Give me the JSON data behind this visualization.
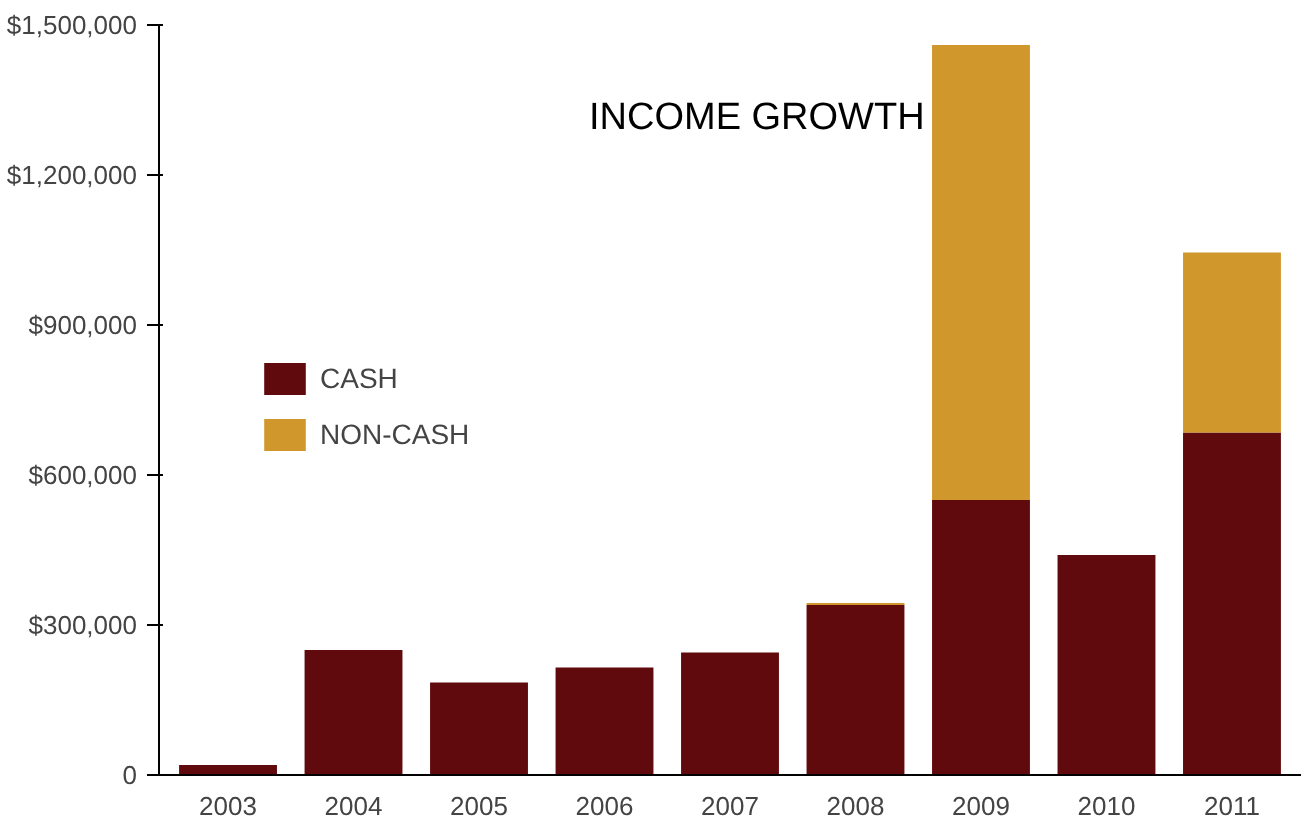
{
  "chart_data": {
    "type": "bar",
    "title": "INCOME GROWTH",
    "stacked": true,
    "categories": [
      "2003",
      "2004",
      "2005",
      "2006",
      "2007",
      "2008",
      "2009",
      "2010",
      "2011"
    ],
    "series": [
      {
        "name": "CASH",
        "color": "#600a0e",
        "values": [
          20000,
          250000,
          185000,
          215000,
          245000,
          340000,
          550000,
          440000,
          685000
        ]
      },
      {
        "name": "NON-CASH",
        "color": "#d0982c",
        "values": [
          null,
          null,
          null,
          null,
          null,
          4000,
          910000,
          null,
          360000
        ]
      }
    ],
    "ylim": [
      0,
      1500000
    ],
    "yticks": [
      {
        "value": 0,
        "label": "0"
      },
      {
        "value": 300000,
        "label": "$300,000"
      },
      {
        "value": 600000,
        "label": "$600,000"
      },
      {
        "value": 900000,
        "label": "$900,000"
      },
      {
        "value": 1200000,
        "label": "$1,200,000"
      },
      {
        "value": 1500000,
        "label": "$1,500,000"
      }
    ],
    "grid": false,
    "legend": "left"
  }
}
